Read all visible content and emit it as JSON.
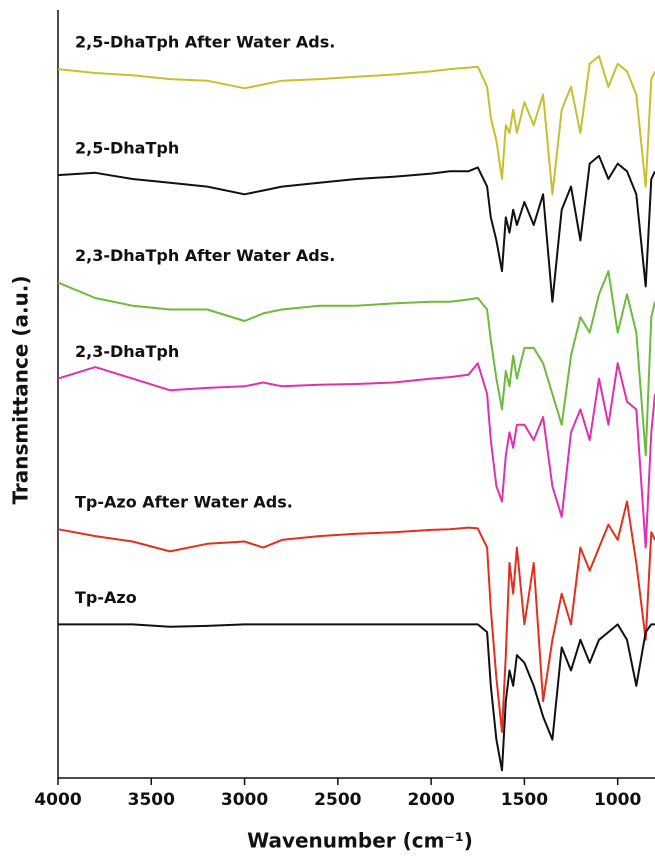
{
  "chart_data": {
    "type": "line",
    "xlabel": "Wavenumber (cm⁻¹)",
    "ylabel": "Transmittance (a.u.)",
    "xlim": [
      4000,
      800
    ],
    "ylim": [
      0,
      100
    ],
    "xticks": [
      4000,
      3500,
      3000,
      2500,
      2000,
      1500,
      1000
    ],
    "x": [
      4000,
      3800,
      3600,
      3400,
      3200,
      3000,
      2900,
      2800,
      2600,
      2400,
      2200,
      2000,
      1900,
      1800,
      1750,
      1700,
      1680,
      1650,
      1620,
      1600,
      1580,
      1560,
      1540,
      1500,
      1450,
      1400,
      1350,
      1300,
      1250,
      1200,
      1150,
      1100,
      1050,
      1000,
      950,
      900,
      850,
      820,
      800
    ],
    "series": [
      {
        "name": "2,5-DhaTph After Water Ads.",
        "color": "#c8bf2e",
        "values": [
          92.3,
          91.8,
          91.5,
          91,
          90.8,
          89.8,
          90.3,
          90.8,
          91,
          91.3,
          91.6,
          92,
          92.3,
          92.5,
          92.6,
          90,
          86,
          83,
          78,
          85,
          84,
          87,
          84,
          88,
          85,
          89,
          76,
          87,
          90,
          84,
          93,
          94,
          90,
          93,
          92,
          89,
          77,
          91,
          92
        ]
      },
      {
        "name": "2,5-DhaTph",
        "color": "#111111",
        "values": [
          78.5,
          78.8,
          78,
          77.5,
          77,
          76,
          76.5,
          77,
          77.5,
          78,
          78.3,
          78.7,
          79,
          79,
          79.5,
          77,
          73,
          70,
          66,
          73,
          71,
          74,
          72,
          75,
          72,
          76,
          62,
          74,
          77,
          70,
          80,
          81,
          78,
          80,
          79,
          76,
          64,
          78,
          79
        ]
      },
      {
        "name": "2,3-DhaTph After Water Ads.",
        "color": "#6cbb3c",
        "values": [
          64.5,
          62.5,
          61.5,
          61,
          61,
          59.5,
          60.5,
          61,
          61.5,
          61.5,
          61.8,
          62,
          62,
          62.3,
          62.5,
          61,
          57,
          52,
          48,
          53,
          51,
          55,
          52,
          56,
          56,
          54,
          50,
          46,
          55,
          60,
          58,
          63,
          66,
          58,
          63,
          58,
          42,
          60,
          62
        ]
      },
      {
        "name": "2,3-DhaTph",
        "color": "#e030b0",
        "values": [
          52,
          53.5,
          52,
          50.5,
          50.8,
          51,
          51.5,
          51,
          51.2,
          51.3,
          51.5,
          52,
          52.2,
          52.5,
          54,
          50,
          44,
          38,
          36,
          42,
          45,
          43,
          46,
          46,
          44,
          47,
          38,
          34,
          45,
          48,
          44,
          52,
          46,
          54,
          49,
          48,
          30,
          45,
          50
        ]
      },
      {
        "name": "Tp-Azo After Water Ads.",
        "color": "#e03020",
        "values": [
          32.4,
          31.5,
          30.8,
          29.5,
          30.5,
          30.8,
          30,
          31,
          31.5,
          31.8,
          32,
          32.3,
          32.4,
          32.6,
          32.5,
          30,
          22,
          13,
          6,
          16,
          28,
          24,
          30,
          20,
          28,
          10,
          18,
          24,
          20,
          30,
          27,
          30,
          33,
          31,
          36,
          28,
          18,
          32,
          31
        ]
      },
      {
        "name": "Tp-Azo",
        "color": "#111111",
        "values": [
          20,
          20,
          20,
          19.7,
          19.8,
          20,
          20,
          20,
          20,
          20,
          20,
          20,
          20,
          20,
          20,
          19,
          12,
          5,
          1,
          10,
          14,
          12,
          16,
          15,
          12,
          8,
          5,
          17,
          14,
          18,
          15,
          18,
          19,
          20,
          18,
          12,
          19,
          20,
          20
        ]
      }
    ]
  }
}
